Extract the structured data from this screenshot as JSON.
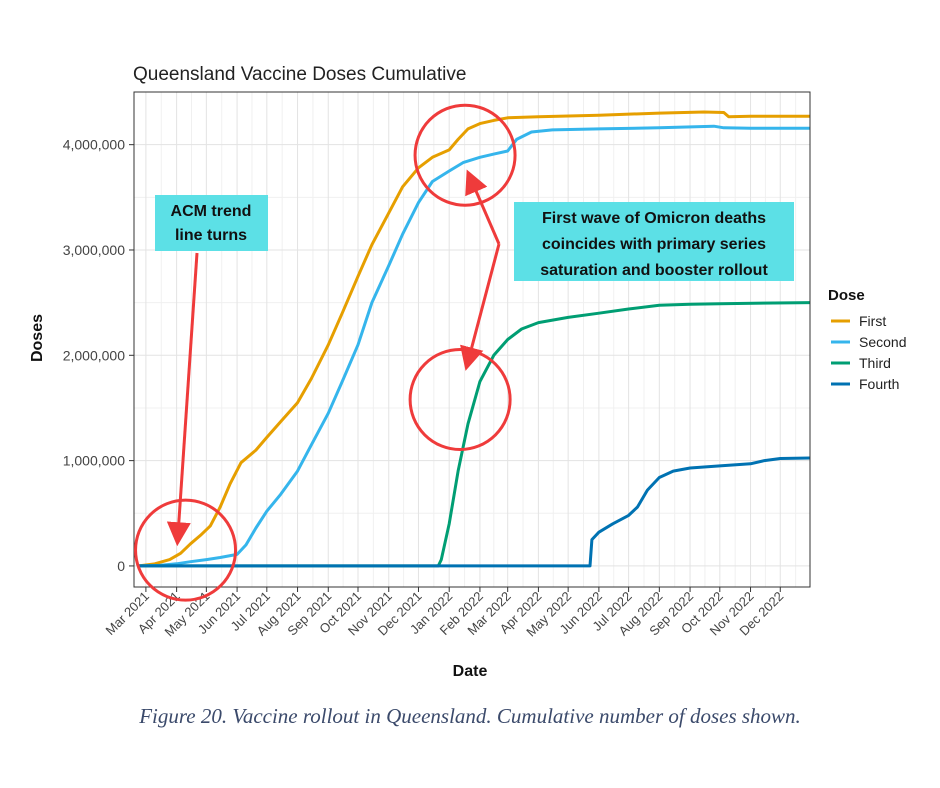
{
  "chart_data": {
    "type": "line",
    "title": "Queensland Vaccine Doses Cumulative",
    "xlabel": "Date",
    "ylabel": "Doses",
    "ylim": [
      -200000,
      4500000
    ],
    "yticks": [
      0,
      1000000,
      2000000,
      3000000,
      4000000
    ],
    "ytick_labels": [
      "0",
      "1,000,000",
      "2,000,000",
      "3,000,000",
      "4,000,000"
    ],
    "x_range": [
      "2021-02-17",
      "2022-12-31"
    ],
    "xticks": [
      "2021-03-01",
      "2021-04-01",
      "2021-05-01",
      "2021-06-01",
      "2021-07-01",
      "2021-08-01",
      "2021-09-01",
      "2021-10-01",
      "2021-11-01",
      "2021-12-01",
      "2022-01-01",
      "2022-02-01",
      "2022-03-01",
      "2022-04-01",
      "2022-05-01",
      "2022-06-01",
      "2022-07-01",
      "2022-08-01",
      "2022-09-01",
      "2022-10-01",
      "2022-11-01",
      "2022-12-01"
    ],
    "xtick_labels": [
      "Mar 2021",
      "Apr 2021",
      "May 2021",
      "Jun 2021",
      "Jul 2021",
      "Aug 2021",
      "Sep 2021",
      "Oct 2021",
      "Nov 2021",
      "Dec 2021",
      "Jan 2022",
      "Feb 2022",
      "Mar 2022",
      "Apr 2022",
      "May 2022",
      "Jun 2022",
      "Jul 2022",
      "Aug 2022",
      "Sep 2022",
      "Oct 2022",
      "Nov 2022",
      "Dec 2022"
    ],
    "legend_title": "Dose",
    "legend_position": "right",
    "grid": true,
    "series": [
      {
        "name": "First",
        "color": "#e69f00",
        "points": [
          [
            "2021-02-22",
            0
          ],
          [
            "2021-03-10",
            20000
          ],
          [
            "2021-03-25",
            60000
          ],
          [
            "2021-04-05",
            120000
          ],
          [
            "2021-04-15",
            210000
          ],
          [
            "2021-04-25",
            290000
          ],
          [
            "2021-05-05",
            380000
          ],
          [
            "2021-05-15",
            560000
          ],
          [
            "2021-05-25",
            780000
          ],
          [
            "2021-06-05",
            980000
          ],
          [
            "2021-06-20",
            1100000
          ],
          [
            "2021-07-01",
            1220000
          ],
          [
            "2021-07-15",
            1370000
          ],
          [
            "2021-08-01",
            1550000
          ],
          [
            "2021-08-15",
            1780000
          ],
          [
            "2021-09-01",
            2100000
          ],
          [
            "2021-09-15",
            2400000
          ],
          [
            "2021-10-01",
            2750000
          ],
          [
            "2021-10-15",
            3050000
          ],
          [
            "2021-11-01",
            3350000
          ],
          [
            "2021-11-15",
            3600000
          ],
          [
            "2021-12-01",
            3780000
          ],
          [
            "2021-12-15",
            3880000
          ],
          [
            "2022-01-01",
            3950000
          ],
          [
            "2022-01-10",
            4050000
          ],
          [
            "2022-01-20",
            4150000
          ],
          [
            "2022-02-01",
            4200000
          ],
          [
            "2022-02-15",
            4230000
          ],
          [
            "2022-03-01",
            4255000
          ],
          [
            "2022-04-01",
            4265000
          ],
          [
            "2022-06-01",
            4280000
          ],
          [
            "2022-08-01",
            4300000
          ],
          [
            "2022-09-15",
            4310000
          ],
          [
            "2022-10-05",
            4305000
          ],
          [
            "2022-10-10",
            4265000
          ],
          [
            "2022-11-01",
            4270000
          ],
          [
            "2022-12-31",
            4270000
          ]
        ]
      },
      {
        "name": "Second",
        "color": "#35b5ec",
        "points": [
          [
            "2021-02-22",
            0
          ],
          [
            "2021-03-15",
            5000
          ],
          [
            "2021-04-01",
            20000
          ],
          [
            "2021-04-15",
            40000
          ],
          [
            "2021-05-01",
            60000
          ],
          [
            "2021-05-15",
            80000
          ],
          [
            "2021-06-01",
            110000
          ],
          [
            "2021-06-10",
            200000
          ],
          [
            "2021-06-20",
            360000
          ],
          [
            "2021-07-01",
            520000
          ],
          [
            "2021-07-15",
            680000
          ],
          [
            "2021-08-01",
            900000
          ],
          [
            "2021-08-15",
            1150000
          ],
          [
            "2021-09-01",
            1450000
          ],
          [
            "2021-09-15",
            1750000
          ],
          [
            "2021-10-01",
            2100000
          ],
          [
            "2021-10-15",
            2500000
          ],
          [
            "2021-11-01",
            2850000
          ],
          [
            "2021-11-15",
            3150000
          ],
          [
            "2021-12-01",
            3450000
          ],
          [
            "2021-12-15",
            3650000
          ],
          [
            "2022-01-01",
            3750000
          ],
          [
            "2022-01-15",
            3830000
          ],
          [
            "2022-02-01",
            3880000
          ],
          [
            "2022-02-15",
            3910000
          ],
          [
            "2022-03-01",
            3940000
          ],
          [
            "2022-03-10",
            4050000
          ],
          [
            "2022-03-25",
            4120000
          ],
          [
            "2022-04-15",
            4140000
          ],
          [
            "2022-06-01",
            4150000
          ],
          [
            "2022-08-01",
            4160000
          ],
          [
            "2022-09-25",
            4175000
          ],
          [
            "2022-10-05",
            4160000
          ],
          [
            "2022-11-01",
            4155000
          ],
          [
            "2022-12-31",
            4155000
          ]
        ]
      },
      {
        "name": "Third",
        "color": "#009e73",
        "points": [
          [
            "2021-02-22",
            0
          ],
          [
            "2021-12-21",
            0
          ],
          [
            "2021-12-24",
            60000
          ],
          [
            "2022-01-01",
            400000
          ],
          [
            "2022-01-10",
            900000
          ],
          [
            "2022-01-20",
            1350000
          ],
          [
            "2022-02-01",
            1750000
          ],
          [
            "2022-02-15",
            2000000
          ],
          [
            "2022-03-01",
            2150000
          ],
          [
            "2022-03-15",
            2250000
          ],
          [
            "2022-04-01",
            2310000
          ],
          [
            "2022-05-01",
            2360000
          ],
          [
            "2022-06-01",
            2400000
          ],
          [
            "2022-07-01",
            2440000
          ],
          [
            "2022-08-01",
            2475000
          ],
          [
            "2022-09-01",
            2485000
          ],
          [
            "2022-10-01",
            2490000
          ],
          [
            "2022-12-31",
            2500000
          ]
        ]
      },
      {
        "name": "Fourth",
        "color": "#0072b2",
        "points": [
          [
            "2021-02-22",
            0
          ],
          [
            "2022-05-23",
            0
          ],
          [
            "2022-05-25",
            250000
          ],
          [
            "2022-06-01",
            320000
          ],
          [
            "2022-06-15",
            400000
          ],
          [
            "2022-07-01",
            480000
          ],
          [
            "2022-07-10",
            560000
          ],
          [
            "2022-07-20",
            720000
          ],
          [
            "2022-08-01",
            840000
          ],
          [
            "2022-08-15",
            900000
          ],
          [
            "2022-09-01",
            930000
          ],
          [
            "2022-10-01",
            950000
          ],
          [
            "2022-11-01",
            970000
          ],
          [
            "2022-11-15",
            1000000
          ],
          [
            "2022-12-01",
            1020000
          ],
          [
            "2022-12-31",
            1025000
          ]
        ]
      }
    ],
    "annotations": [
      {
        "label": "ACM trend",
        "line2": "line turns",
        "target_date": "2021-04-02",
        "target_value": 130000
      },
      {
        "label": "First wave of Omicron deaths",
        "line2": "coincides with primary series",
        "line3": "saturation and booster rollout",
        "targets": [
          [
            "2022-01-15",
            3750000
          ],
          [
            "2022-01-15",
            1850000
          ]
        ]
      }
    ],
    "circles": [
      {
        "center_date": "2021-04-10",
        "center_value": 150000
      },
      {
        "center_date": "2022-01-17",
        "center_value": 3900000
      },
      {
        "center_date": "2022-01-12",
        "center_value": 1580000
      }
    ]
  },
  "caption": "Figure 20. Vaccine rollout in Queensland. Cumulative number of doses shown."
}
